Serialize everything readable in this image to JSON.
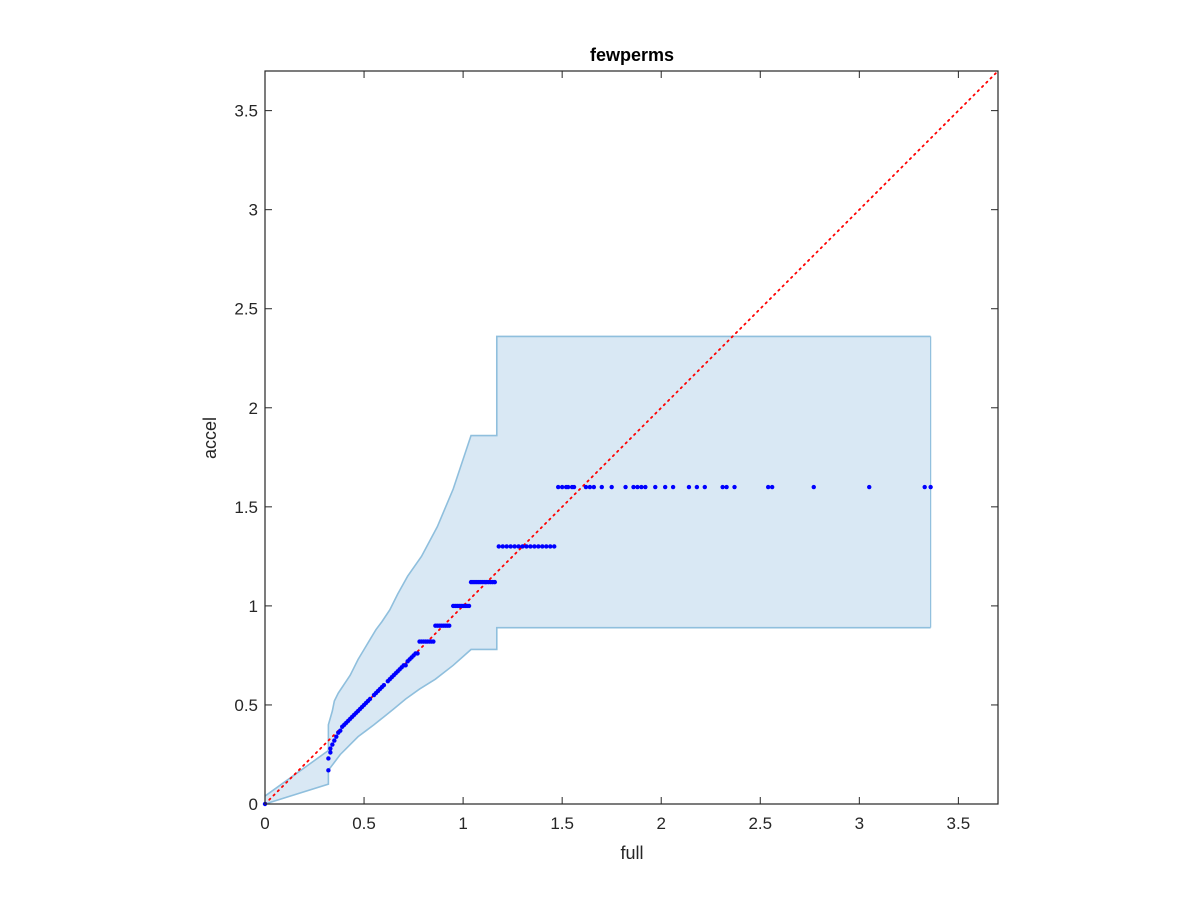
{
  "chart_data": {
    "type": "scatter",
    "title": "fewperms",
    "xlabel": "full",
    "ylabel": "accel",
    "xlim": [
      0,
      3.7
    ],
    "ylim": [
      0,
      3.7
    ],
    "xticks": [
      0,
      0.5,
      1,
      1.5,
      2,
      2.5,
      3,
      3.5
    ],
    "yticks": [
      0,
      0.5,
      1,
      1.5,
      2,
      2.5,
      3,
      3.5
    ],
    "grid": false,
    "legend": "none",
    "colors": {
      "points": "#0000ff",
      "reference_line": "#ff0000",
      "band_fill": "#d9e8f4",
      "band_edge": "#8fbfdd",
      "axes": "#262626"
    },
    "reference_line": {
      "style": "dotted",
      "from": [
        0,
        0
      ],
      "to": [
        3.7,
        3.7
      ]
    },
    "band": {
      "upper": [
        [
          0,
          0.04
        ],
        [
          0.32,
          0.27
        ],
        [
          0.32,
          0.4
        ],
        [
          0.34,
          0.47
        ],
        [
          0.35,
          0.52
        ],
        [
          0.37,
          0.56
        ],
        [
          0.39,
          0.59
        ],
        [
          0.41,
          0.62
        ],
        [
          0.43,
          0.65
        ],
        [
          0.45,
          0.69
        ],
        [
          0.47,
          0.73
        ],
        [
          0.5,
          0.78
        ],
        [
          0.53,
          0.83
        ],
        [
          0.56,
          0.88
        ],
        [
          0.59,
          0.92
        ],
        [
          0.63,
          0.98
        ],
        [
          0.67,
          1.06
        ],
        [
          0.72,
          1.15
        ],
        [
          0.79,
          1.25
        ],
        [
          0.87,
          1.4
        ],
        [
          0.95,
          1.59
        ],
        [
          1.04,
          1.86
        ],
        [
          1.17,
          1.86
        ],
        [
          1.17,
          2.36
        ],
        [
          1.47,
          2.36
        ],
        [
          3.36,
          2.36
        ]
      ],
      "lower": [
        [
          0,
          0.0
        ],
        [
          0.32,
          0.1
        ],
        [
          0.32,
          0.17
        ],
        [
          0.35,
          0.21
        ],
        [
          0.38,
          0.25
        ],
        [
          0.41,
          0.28
        ],
        [
          0.44,
          0.31
        ],
        [
          0.47,
          0.34
        ],
        [
          0.51,
          0.37
        ],
        [
          0.55,
          0.4
        ],
        [
          0.6,
          0.44
        ],
        [
          0.65,
          0.48
        ],
        [
          0.71,
          0.53
        ],
        [
          0.78,
          0.58
        ],
        [
          0.86,
          0.63
        ],
        [
          0.95,
          0.7
        ],
        [
          1.04,
          0.78
        ],
        [
          1.17,
          0.78
        ],
        [
          1.17,
          0.89
        ],
        [
          1.47,
          0.89
        ],
        [
          3.36,
          0.89
        ]
      ]
    },
    "x": [
      0.0,
      0.32,
      0.32,
      0.33,
      0.33,
      0.34,
      0.35,
      0.36,
      0.37,
      0.38,
      0.39,
      0.4,
      0.41,
      0.42,
      0.43,
      0.44,
      0.45,
      0.46,
      0.47,
      0.48,
      0.49,
      0.5,
      0.51,
      0.52,
      0.53,
      0.55,
      0.56,
      0.57,
      0.58,
      0.59,
      0.6,
      0.62,
      0.63,
      0.64,
      0.65,
      0.66,
      0.67,
      0.68,
      0.69,
      0.7,
      0.71,
      0.72,
      0.73,
      0.74,
      0.75,
      0.76,
      0.77,
      0.78,
      0.79,
      0.8,
      0.81,
      0.82,
      0.83,
      0.84,
      0.85,
      0.86,
      0.87,
      0.88,
      0.89,
      0.9,
      0.91,
      0.92,
      0.93,
      0.95,
      0.96,
      0.97,
      0.98,
      0.99,
      1.0,
      1.01,
      1.02,
      1.03,
      1.04,
      1.05,
      1.06,
      1.07,
      1.08,
      1.09,
      1.1,
      1.11,
      1.12,
      1.13,
      1.14,
      1.15,
      1.16,
      1.18,
      1.2,
      1.22,
      1.24,
      1.26,
      1.28,
      1.3,
      1.32,
      1.34,
      1.36,
      1.38,
      1.4,
      1.42,
      1.44,
      1.46,
      1.48,
      1.5,
      1.52,
      1.53,
      1.55,
      1.56,
      1.62,
      1.64,
      1.66,
      1.7,
      1.75,
      1.82,
      1.86,
      1.88,
      1.9,
      1.92,
      1.97,
      2.02,
      2.06,
      2.14,
      2.18,
      2.22,
      2.31,
      2.33,
      2.37,
      2.54,
      2.56,
      2.77,
      3.05,
      3.33,
      3.36
    ],
    "y": [
      0.0,
      0.17,
      0.23,
      0.26,
      0.28,
      0.3,
      0.32,
      0.34,
      0.36,
      0.37,
      0.39,
      0.4,
      0.41,
      0.42,
      0.43,
      0.44,
      0.45,
      0.46,
      0.47,
      0.48,
      0.49,
      0.5,
      0.51,
      0.52,
      0.53,
      0.55,
      0.56,
      0.57,
      0.58,
      0.59,
      0.6,
      0.62,
      0.63,
      0.64,
      0.65,
      0.66,
      0.67,
      0.68,
      0.69,
      0.7,
      0.7,
      0.72,
      0.73,
      0.74,
      0.75,
      0.76,
      0.76,
      0.82,
      0.82,
      0.82,
      0.82,
      0.82,
      0.82,
      0.82,
      0.82,
      0.9,
      0.9,
      0.9,
      0.9,
      0.9,
      0.9,
      0.9,
      0.9,
      1.0,
      1.0,
      1.0,
      1.0,
      1.0,
      1.0,
      1.0,
      1.0,
      1.0,
      1.12,
      1.12,
      1.12,
      1.12,
      1.12,
      1.12,
      1.12,
      1.12,
      1.12,
      1.12,
      1.12,
      1.12,
      1.12,
      1.3,
      1.3,
      1.3,
      1.3,
      1.3,
      1.3,
      1.3,
      1.3,
      1.3,
      1.3,
      1.3,
      1.3,
      1.3,
      1.3,
      1.3,
      1.6,
      1.6,
      1.6,
      1.6,
      1.6,
      1.6,
      1.6,
      1.6,
      1.6,
      1.6,
      1.6,
      1.6,
      1.6,
      1.6,
      1.6,
      1.6,
      1.6,
      1.6,
      1.6,
      1.6,
      1.6,
      1.6,
      1.6,
      1.6,
      1.6,
      1.6,
      1.6,
      1.6,
      1.6,
      1.6,
      1.6
    ]
  }
}
